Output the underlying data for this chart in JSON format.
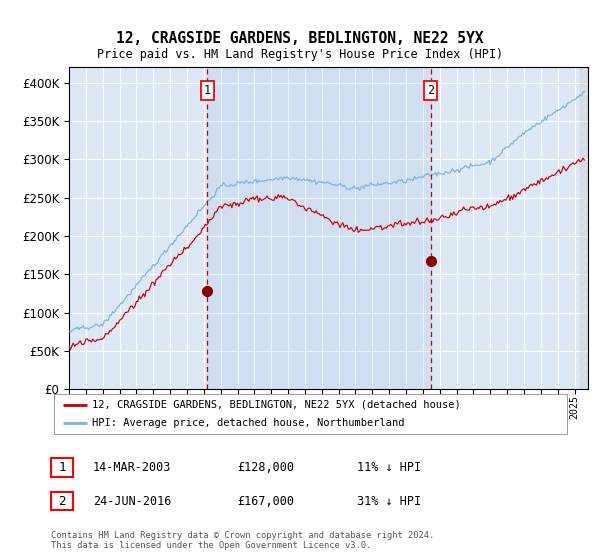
{
  "title": "12, CRAGSIDE GARDENS, BEDLINGTON, NE22 5YX",
  "subtitle": "Price paid vs. HM Land Registry's House Price Index (HPI)",
  "legend_line1": "12, CRAGSIDE GARDENS, BEDLINGTON, NE22 5YX (detached house)",
  "legend_line2": "HPI: Average price, detached house, Northumberland",
  "footnote": "Contains HM Land Registry data © Crown copyright and database right 2024.\nThis data is licensed under the Open Government Licence v3.0.",
  "sale1_date": "14-MAR-2003",
  "sale1_price": "£128,000",
  "sale1_hpi": "11% ↓ HPI",
  "sale2_date": "24-JUN-2016",
  "sale2_price": "£167,000",
  "sale2_hpi": "31% ↓ HPI",
  "bg_color": "#dce8f5",
  "grid_color": "#ffffff",
  "hpi_line_color": "#7ab4d8",
  "price_line_color": "#cc0000",
  "vline_color": "#cc0000",
  "marker_color": "#8b0000",
  "ylim": [
    0,
    420000
  ],
  "yticks": [
    0,
    50000,
    100000,
    150000,
    200000,
    250000,
    300000,
    350000,
    400000
  ],
  "sale1_x": 2003.2,
  "sale1_y": 128000,
  "sale2_x": 2016.48,
  "sale2_y": 167000,
  "xmin": 1995.0,
  "xmax": 2025.8
}
